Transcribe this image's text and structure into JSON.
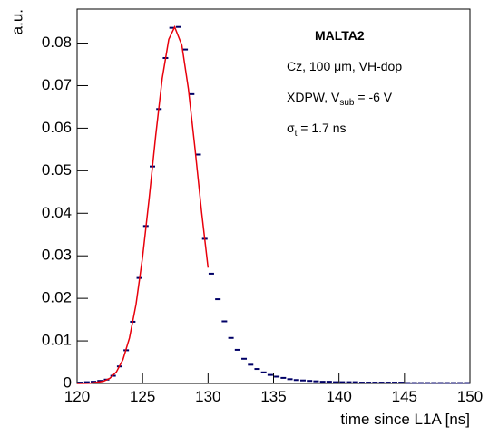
{
  "chart_data": {
    "type": "histogram-fit",
    "x_label": "time since L1A [ns]",
    "y_label": "a.u.",
    "xlim": [
      120,
      150
    ],
    "ylim": [
      0,
      0.088
    ],
    "xticks": [
      120,
      125,
      130,
      135,
      140,
      145,
      150
    ],
    "yticks": [
      0,
      0.01,
      0.02,
      0.03,
      0.04,
      0.05,
      0.06,
      0.07,
      0.08
    ],
    "annotations": [
      [
        {
          "text": "MALTA2",
          "weight": "bold"
        }
      ],
      [
        {
          "text": "Cz, 100 μm, VH-dop"
        }
      ],
      [
        {
          "text": "XDPW, V"
        },
        {
          "text": "sub",
          "baseline": "sub"
        },
        {
          "text": " = -6 V"
        }
      ],
      [
        {
          "text": "σ"
        },
        {
          "text": "t",
          "baseline": "sub"
        },
        {
          "text": " = 1.7 ns"
        }
      ]
    ],
    "series": [
      {
        "name": "data",
        "color": "#000066",
        "x": [
          120.25,
          120.75,
          121.25,
          121.75,
          122.25,
          122.75,
          123.25,
          123.75,
          124.25,
          124.75,
          125.25,
          125.75,
          126.25,
          126.75,
          127.25,
          127.75,
          128.25,
          128.75,
          129.25,
          129.75,
          130.25,
          130.75,
          131.25,
          131.75,
          132.25,
          132.75,
          133.25,
          133.75,
          134.25,
          134.75,
          135.25,
          135.75,
          136.25,
          136.75,
          137.25,
          137.75,
          138.25,
          138.75,
          139.25,
          139.75,
          140.25,
          140.75,
          141.25,
          141.75,
          142.25,
          142.75,
          143.25,
          143.75,
          144.25,
          144.75,
          145.25,
          145.75,
          146.25,
          146.75,
          147.25,
          147.75,
          148.25,
          148.75,
          149.25,
          149.75
        ],
        "values": [
          0.0002,
          0.0003,
          0.0004,
          0.0006,
          0.0009,
          0.0018,
          0.004,
          0.0078,
          0.0145,
          0.0248,
          0.037,
          0.051,
          0.0645,
          0.0765,
          0.0836,
          0.0838,
          0.0785,
          0.068,
          0.0538,
          0.034,
          0.0258,
          0.0198,
          0.0146,
          0.0107,
          0.0079,
          0.0058,
          0.0044,
          0.0034,
          0.0026,
          0.002,
          0.0016,
          0.0013,
          0.001,
          0.0008,
          0.0007,
          0.0006,
          0.0005,
          0.0004,
          0.0004,
          0.0003,
          0.0003,
          0.0003,
          0.0003,
          0.0002,
          0.0002,
          0.0002,
          0.0002,
          0.0002,
          0.0002,
          0.0002,
          0.0001,
          0.0001,
          0.0001,
          0.0001,
          0.0001,
          0.0001,
          0.0001,
          0.0001,
          0.0001,
          0.0001
        ]
      },
      {
        "name": "fit",
        "color": "#e8000b",
        "x": [
          120,
          121,
          122,
          122.5,
          123,
          123.5,
          124,
          124.5,
          125,
          125.5,
          126,
          126.5,
          127,
          127.45,
          128,
          128.5,
          129,
          129.5,
          130
        ],
        "values": [
          0,
          6e-05,
          0.0005,
          0.0012,
          0.0027,
          0.0056,
          0.0107,
          0.0186,
          0.0297,
          0.0434,
          0.0582,
          0.0717,
          0.0809,
          0.0838,
          0.0795,
          0.0692,
          0.0553,
          0.0405,
          0.0272
        ]
      }
    ]
  }
}
